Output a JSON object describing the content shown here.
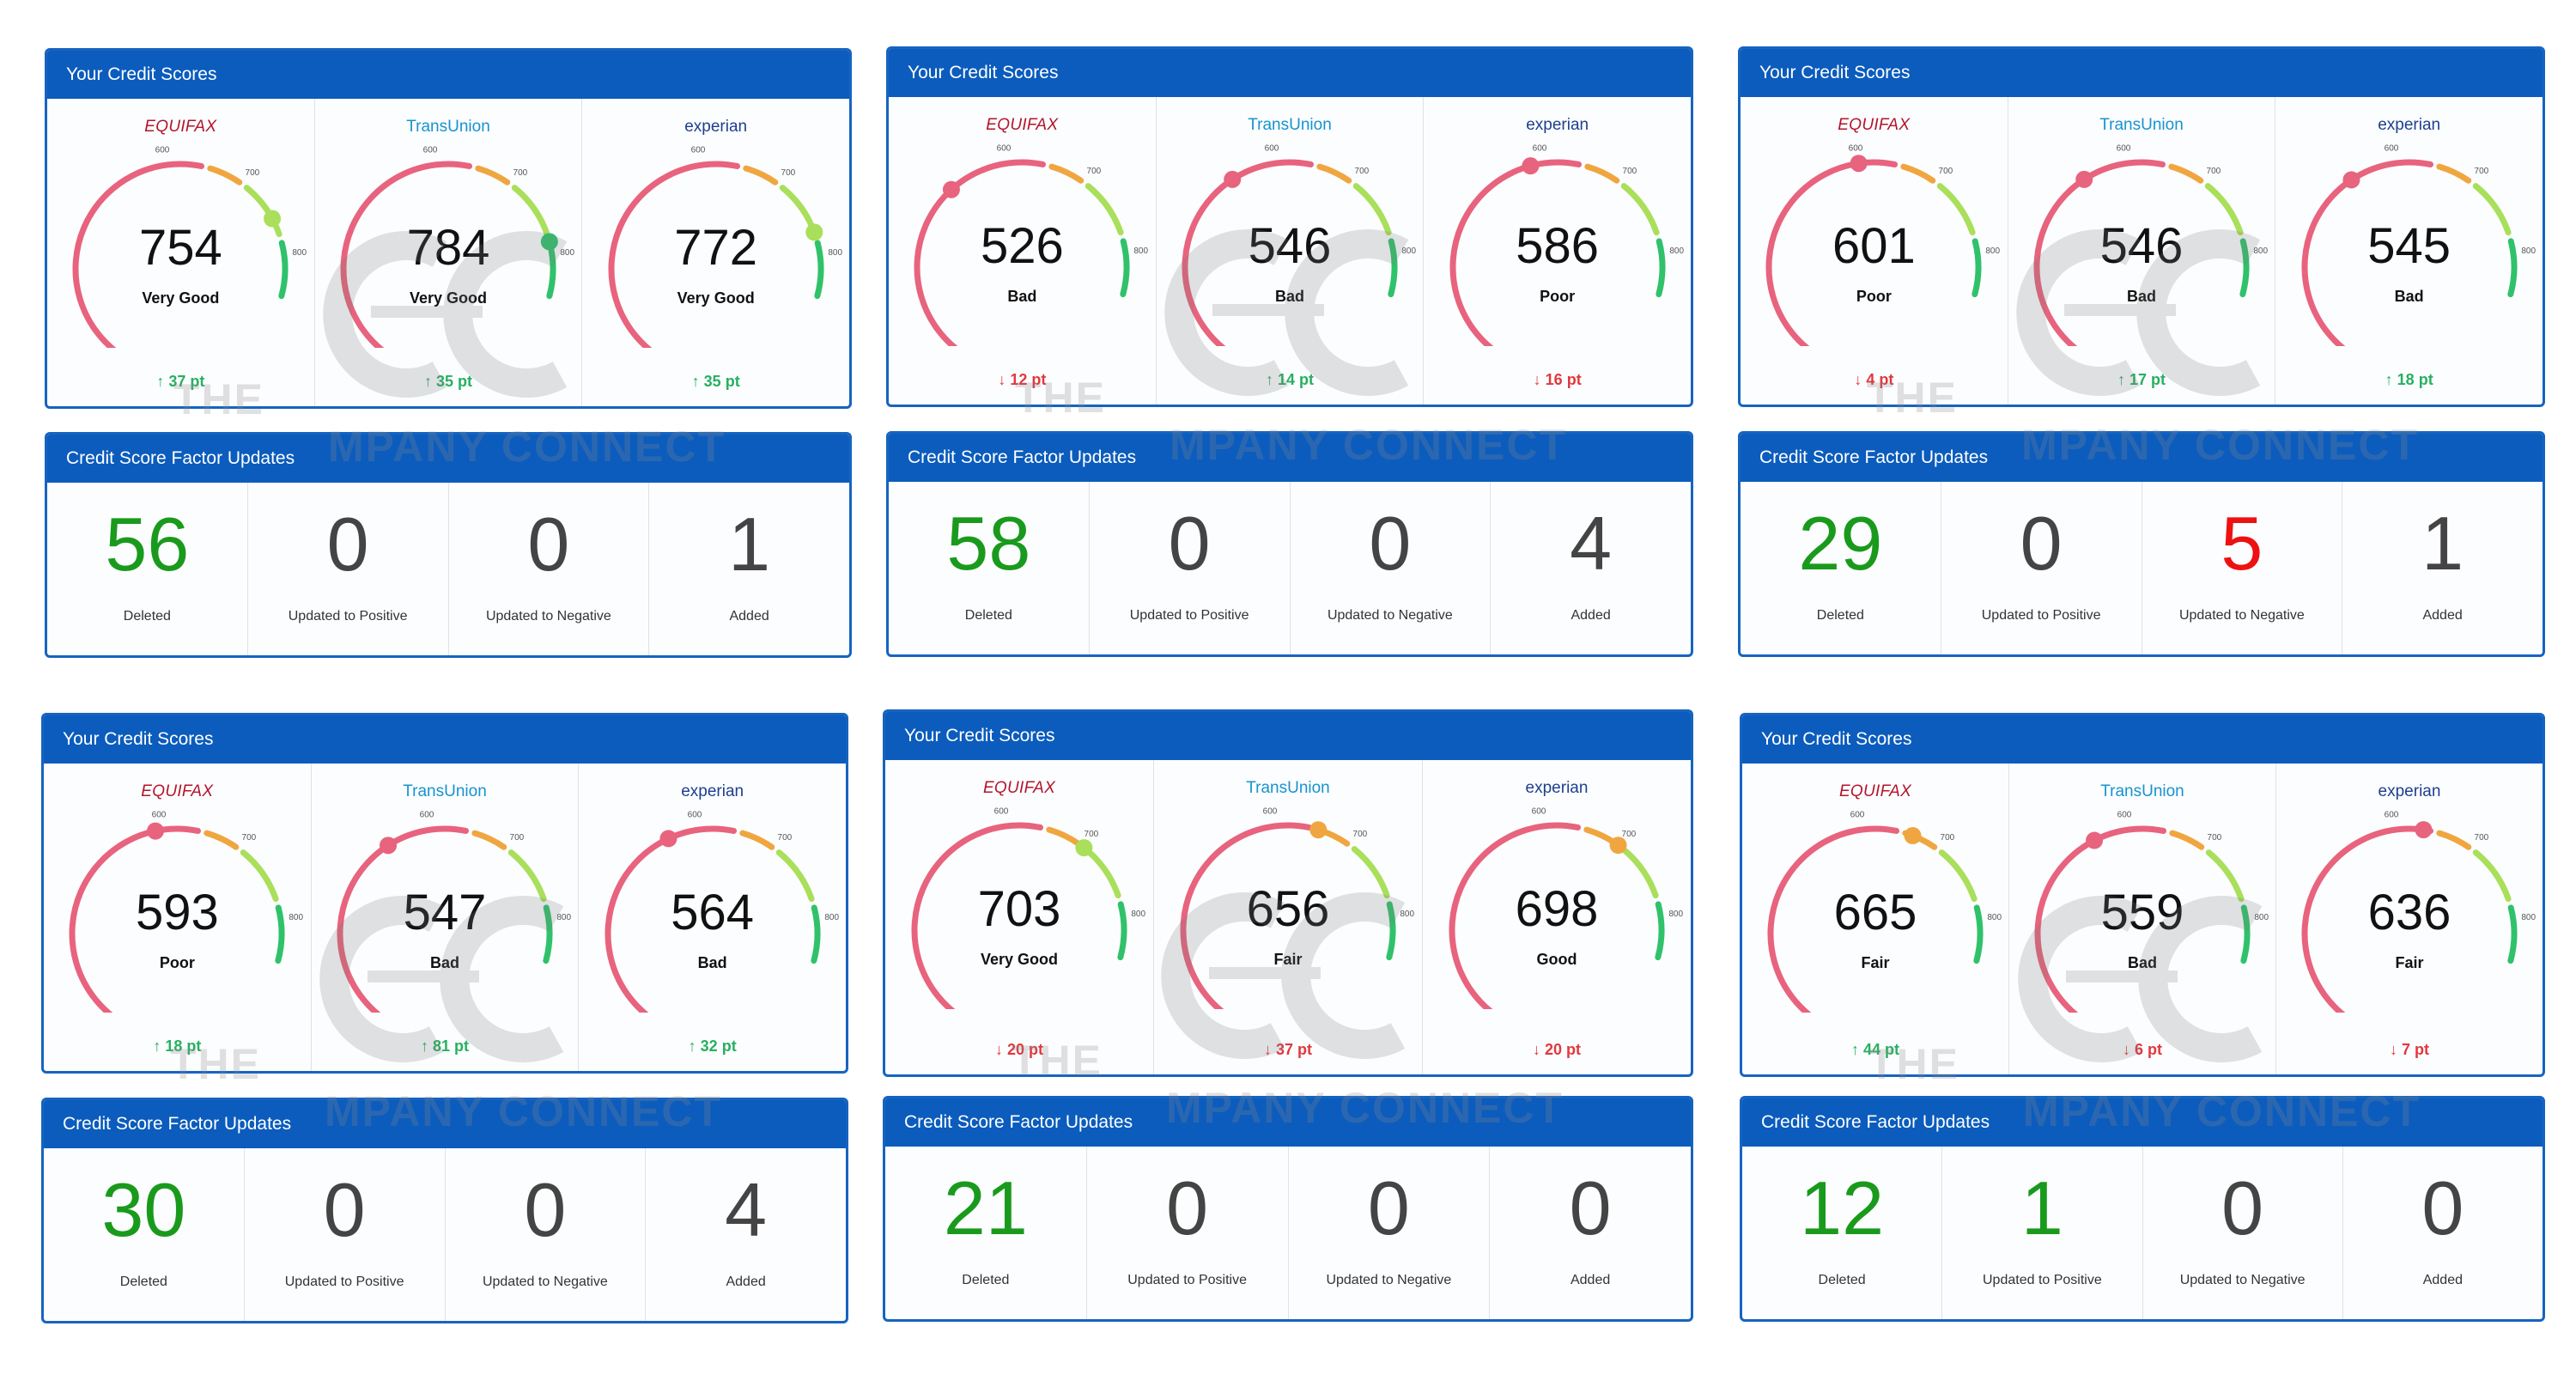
{
  "watermark": {
    "line1": "THE",
    "line2": "MPANY CONNECT"
  },
  "colors": {
    "header": "#0b5cbd",
    "border": "#1664c0",
    "positive": "#27b060",
    "negative": "#e0393e",
    "deleted": "#1a9a1c",
    "negative_count": "#ee1111"
  },
  "gauge_ticks": [
    "600",
    "700",
    "800"
  ],
  "dashboards": [
    {
      "scores": {
        "title": "Your Credit Scores",
        "bureaus": [
          {
            "name": "EQUIFAX",
            "score": "754",
            "rating": "Very Good",
            "direction": "up",
            "delta": "37 pt"
          },
          {
            "name": "TransUnion",
            "score": "784",
            "rating": "Very Good",
            "direction": "up",
            "delta": "35 pt"
          },
          {
            "name": "experian",
            "score": "772",
            "rating": "Very Good",
            "direction": "up",
            "delta": "35 pt"
          }
        ]
      },
      "factors": {
        "title": "Credit Score Factor Updates",
        "items": [
          {
            "value": "56",
            "label": "Deleted",
            "tone": "green"
          },
          {
            "value": "0",
            "label": "Updated to Positive",
            "tone": "default"
          },
          {
            "value": "0",
            "label": "Updated to Negative",
            "tone": "default"
          },
          {
            "value": "1",
            "label": "Added",
            "tone": "default"
          }
        ]
      }
    },
    {
      "scores": {
        "title": "Your Credit Scores",
        "bureaus": [
          {
            "name": "EQUIFAX",
            "score": "526",
            "rating": "Bad",
            "direction": "down",
            "delta": "12 pt"
          },
          {
            "name": "TransUnion",
            "score": "546",
            "rating": "Bad",
            "direction": "up",
            "delta": "14 pt"
          },
          {
            "name": "experian",
            "score": "586",
            "rating": "Poor",
            "direction": "down",
            "delta": "16 pt"
          }
        ]
      },
      "factors": {
        "title": "Credit Score Factor Updates",
        "items": [
          {
            "value": "58",
            "label": "Deleted",
            "tone": "green"
          },
          {
            "value": "0",
            "label": "Updated to Positive",
            "tone": "default"
          },
          {
            "value": "0",
            "label": "Updated to Negative",
            "tone": "default"
          },
          {
            "value": "4",
            "label": "Added",
            "tone": "default"
          }
        ]
      }
    },
    {
      "scores": {
        "title": "Your Credit Scores",
        "bureaus": [
          {
            "name": "EQUIFAX",
            "score": "601",
            "rating": "Poor",
            "direction": "down",
            "delta": "4 pt"
          },
          {
            "name": "TransUnion",
            "score": "546",
            "rating": "Bad",
            "direction": "up",
            "delta": "17 pt"
          },
          {
            "name": "experian",
            "score": "545",
            "rating": "Bad",
            "direction": "up",
            "delta": "18 pt"
          }
        ]
      },
      "factors": {
        "title": "Credit Score Factor Updates",
        "items": [
          {
            "value": "29",
            "label": "Deleted",
            "tone": "green"
          },
          {
            "value": "0",
            "label": "Updated to Positive",
            "tone": "default"
          },
          {
            "value": "5",
            "label": "Updated to Negative",
            "tone": "red"
          },
          {
            "value": "1",
            "label": "Added",
            "tone": "default"
          }
        ]
      }
    },
    {
      "scores": {
        "title": "Your Credit Scores",
        "bureaus": [
          {
            "name": "EQUIFAX",
            "score": "593",
            "rating": "Poor",
            "direction": "up",
            "delta": "18 pt"
          },
          {
            "name": "TransUnion",
            "score": "547",
            "rating": "Bad",
            "direction": "up",
            "delta": "81 pt"
          },
          {
            "name": "experian",
            "score": "564",
            "rating": "Bad",
            "direction": "up",
            "delta": "32 pt"
          }
        ]
      },
      "factors": {
        "title": "Credit Score Factor Updates",
        "items": [
          {
            "value": "30",
            "label": "Deleted",
            "tone": "green"
          },
          {
            "value": "0",
            "label": "Updated to Positive",
            "tone": "default"
          },
          {
            "value": "0",
            "label": "Updated to Negative",
            "tone": "default"
          },
          {
            "value": "4",
            "label": "Added",
            "tone": "default"
          }
        ]
      }
    },
    {
      "scores": {
        "title": "Your Credit Scores",
        "bureaus": [
          {
            "name": "EQUIFAX",
            "score": "703",
            "rating": "Very Good",
            "direction": "down",
            "delta": "20 pt"
          },
          {
            "name": "TransUnion",
            "score": "656",
            "rating": "Fair",
            "direction": "down",
            "delta": "37 pt"
          },
          {
            "name": "experian",
            "score": "698",
            "rating": "Good",
            "direction": "down",
            "delta": "20 pt"
          }
        ]
      },
      "factors": {
        "title": "Credit Score Factor Updates",
        "items": [
          {
            "value": "21",
            "label": "Deleted",
            "tone": "green"
          },
          {
            "value": "0",
            "label": "Updated to Positive",
            "tone": "default"
          },
          {
            "value": "0",
            "label": "Updated to Negative",
            "tone": "default"
          },
          {
            "value": "0",
            "label": "Added",
            "tone": "default"
          }
        ]
      }
    },
    {
      "scores": {
        "title": "Your Credit Scores",
        "bureaus": [
          {
            "name": "EQUIFAX",
            "score": "665",
            "rating": "Fair",
            "direction": "up",
            "delta": "44 pt"
          },
          {
            "name": "TransUnion",
            "score": "559",
            "rating": "Bad",
            "direction": "down",
            "delta": "6 pt"
          },
          {
            "name": "experian",
            "score": "636",
            "rating": "Fair",
            "direction": "down",
            "delta": "7 pt"
          }
        ]
      },
      "factors": {
        "title": "Credit Score Factor Updates",
        "items": [
          {
            "value": "12",
            "label": "Deleted",
            "tone": "green"
          },
          {
            "value": "1",
            "label": "Updated to Positive",
            "tone": "green"
          },
          {
            "value": "0",
            "label": "Updated to Negative",
            "tone": "default"
          },
          {
            "value": "0",
            "label": "Added",
            "tone": "default"
          }
        ]
      }
    }
  ]
}
